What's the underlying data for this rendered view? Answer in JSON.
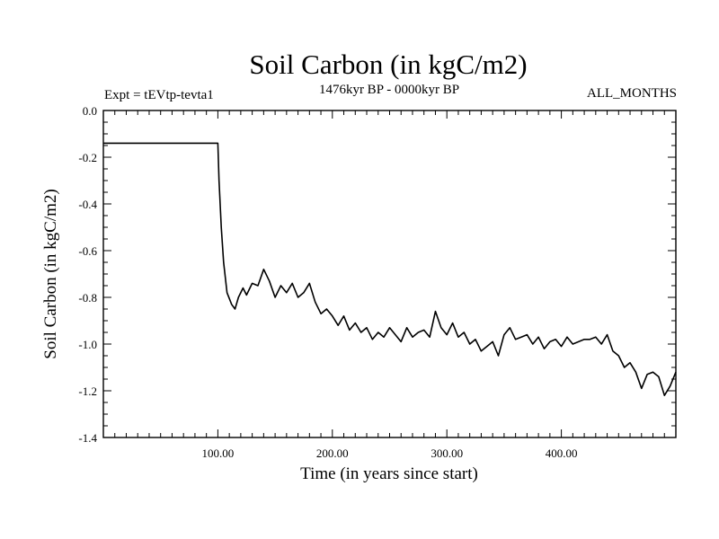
{
  "chart_data": {
    "type": "line",
    "title": "Soil Carbon (in kgC/m2)",
    "experiment_label": "Expt = tEVtp-tevta1",
    "period_label": "1476kyr BP - 0000kyr BP",
    "season_label": "ALL_MONTHS",
    "xlabel": "Time (in years since start)",
    "ylabel": "Soil Carbon (in kgC/m2)",
    "xlim": [
      0,
      500
    ],
    "ylim": [
      -1.4,
      0.0
    ],
    "x_ticks": [
      100,
      200,
      300,
      400
    ],
    "x_tick_labels": [
      "100.00",
      "200.00",
      "300.00",
      "400.00"
    ],
    "y_ticks": [
      0.0,
      -0.2,
      -0.4,
      -0.6,
      -0.8,
      -1.0,
      -1.2,
      -1.4
    ],
    "y_tick_labels": [
      "0.0",
      "-0.2",
      "-0.4",
      "-0.6",
      "-0.8",
      "-1.0",
      "-1.2",
      "-1.4"
    ],
    "series": [
      {
        "name": "Soil Carbon",
        "x": [
          0,
          100,
          101,
          103,
          105,
          108,
          112,
          115,
          118,
          122,
          125,
          130,
          135,
          140,
          145,
          150,
          155,
          160,
          165,
          170,
          175,
          180,
          185,
          190,
          195,
          200,
          205,
          210,
          215,
          220,
          225,
          230,
          235,
          240,
          245,
          250,
          255,
          260,
          265,
          270,
          275,
          280,
          285,
          290,
          295,
          300,
          305,
          310,
          315,
          320,
          325,
          330,
          335,
          340,
          345,
          350,
          355,
          360,
          365,
          370,
          375,
          380,
          385,
          390,
          395,
          400,
          405,
          410,
          415,
          420,
          425,
          430,
          435,
          440,
          445,
          450,
          455,
          460,
          465,
          470,
          475,
          480,
          485,
          490,
          495,
          500
        ],
        "y": [
          -0.14,
          -0.14,
          -0.3,
          -0.5,
          -0.65,
          -0.78,
          -0.83,
          -0.85,
          -0.8,
          -0.76,
          -0.79,
          -0.74,
          -0.75,
          -0.68,
          -0.73,
          -0.8,
          -0.75,
          -0.78,
          -0.74,
          -0.8,
          -0.78,
          -0.74,
          -0.82,
          -0.87,
          -0.85,
          -0.88,
          -0.92,
          -0.88,
          -0.94,
          -0.91,
          -0.95,
          -0.93,
          -0.98,
          -0.95,
          -0.97,
          -0.93,
          -0.96,
          -0.99,
          -0.93,
          -0.97,
          -0.95,
          -0.94,
          -0.97,
          -0.86,
          -0.93,
          -0.96,
          -0.91,
          -0.97,
          -0.95,
          -1.0,
          -0.98,
          -1.03,
          -1.01,
          -0.99,
          -1.05,
          -0.96,
          -0.93,
          -0.98,
          -0.97,
          -0.96,
          -1.0,
          -0.97,
          -1.02,
          -0.99,
          -0.98,
          -1.01,
          -0.97,
          -1.0,
          -0.99,
          -0.98,
          -0.98,
          -0.97,
          -1.0,
          -0.96,
          -1.03,
          -1.05,
          -1.1,
          -1.08,
          -1.12,
          -1.19,
          -1.13,
          -1.12,
          -1.14,
          -1.22,
          -1.18,
          -1.12
        ]
      }
    ]
  }
}
